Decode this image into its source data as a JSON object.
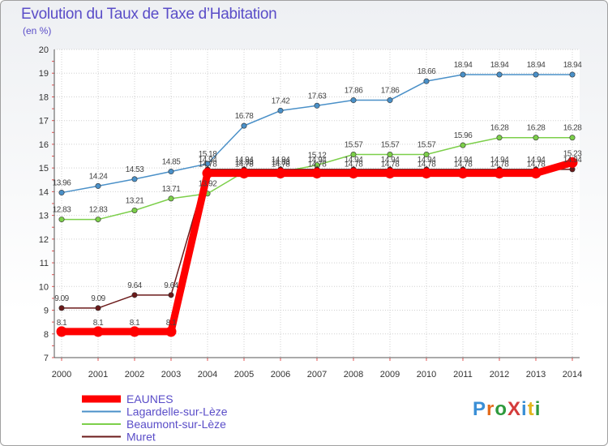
{
  "header": {
    "title": "Evolution du Taux de Taxe d’Habitation",
    "subtitle": "(en %)"
  },
  "logo": {
    "text": "ProXiti",
    "colors": [
      "#3a8fd6",
      "#e36b1c",
      "#2e9a3d",
      "#d43b3b",
      "#3a8fd6",
      "#e3b51c",
      "#2e9a3d"
    ]
  },
  "chart_data": {
    "type": "line",
    "title": "Evolution du Taux de Taxe d’Habitation",
    "subtitle": "(en %)",
    "xlabel": "",
    "ylabel": "",
    "x": [
      "2000",
      "2001",
      "2002",
      "2003",
      "2004",
      "2005",
      "2006",
      "2007",
      "2008",
      "2009",
      "2010",
      "2011",
      "2012",
      "2013",
      "2014"
    ],
    "ylim": [
      7,
      20
    ],
    "yticks": [
      7,
      8,
      9,
      10,
      11,
      12,
      13,
      14,
      15,
      16,
      17,
      18,
      19,
      20
    ],
    "grid": true,
    "legend_position": "bottom-left",
    "series": [
      {
        "name": "EAUNES",
        "color": "#ff0000",
        "values": [
          8.1,
          8.1,
          8.1,
          8.1,
          14.78,
          14.78,
          14.78,
          14.78,
          14.78,
          14.78,
          14.78,
          14.78,
          14.78,
          14.78,
          15.23
        ],
        "labels": [
          "8.1",
          "8.1",
          "8.1",
          "8.1",
          "14.78",
          "14.78",
          "14.78",
          "14.78",
          "14.78",
          "14.78",
          "14.78",
          "14.78",
          "14.78",
          "14.78",
          "15.23"
        ]
      },
      {
        "name": "Lagardelle-sur-Lèze",
        "color": "#4a90c8",
        "values": [
          13.96,
          14.24,
          14.53,
          14.85,
          15.18,
          16.78,
          17.42,
          17.63,
          17.86,
          17.86,
          18.66,
          18.94,
          18.94,
          18.94,
          18.94
        ],
        "labels": [
          "13.96",
          "14.24",
          "14.53",
          "14.85",
          "15.18",
          "16.78",
          "17.42",
          "17.63",
          "17.86",
          "17.86",
          "18.66",
          "18.94",
          "18.94",
          "18.94",
          "18.94"
        ]
      },
      {
        "name": "Beaumont-sur-Lèze",
        "color": "#7ccf4a",
        "values": [
          12.83,
          12.83,
          13.21,
          13.71,
          13.92,
          14.83,
          14.83,
          15.12,
          15.57,
          15.57,
          15.57,
          15.96,
          16.28,
          16.28,
          16.28
        ],
        "labels": [
          "12.83",
          "12.83",
          "13.21",
          "13.71",
          "13.92",
          "14.83",
          "14.83",
          "15.12",
          "15.57",
          "15.57",
          "15.57",
          "15.96",
          "16.28",
          "16.28",
          "16.28"
        ]
      },
      {
        "name": "Muret",
        "color": "#6b1a1a",
        "values": [
          9.09,
          9.09,
          9.64,
          9.64,
          14.94,
          14.94,
          14.94,
          14.94,
          14.94,
          14.94,
          14.94,
          14.94,
          14.94,
          14.94,
          14.94
        ],
        "labels": [
          "9.09",
          "9.09",
          "9.64",
          "9.64",
          "14.94",
          "14.94",
          "14.94",
          "14.94",
          "14.94",
          "14.94",
          "14.94",
          "14.94",
          "14.94",
          "14.94",
          "14.94"
        ]
      }
    ]
  }
}
